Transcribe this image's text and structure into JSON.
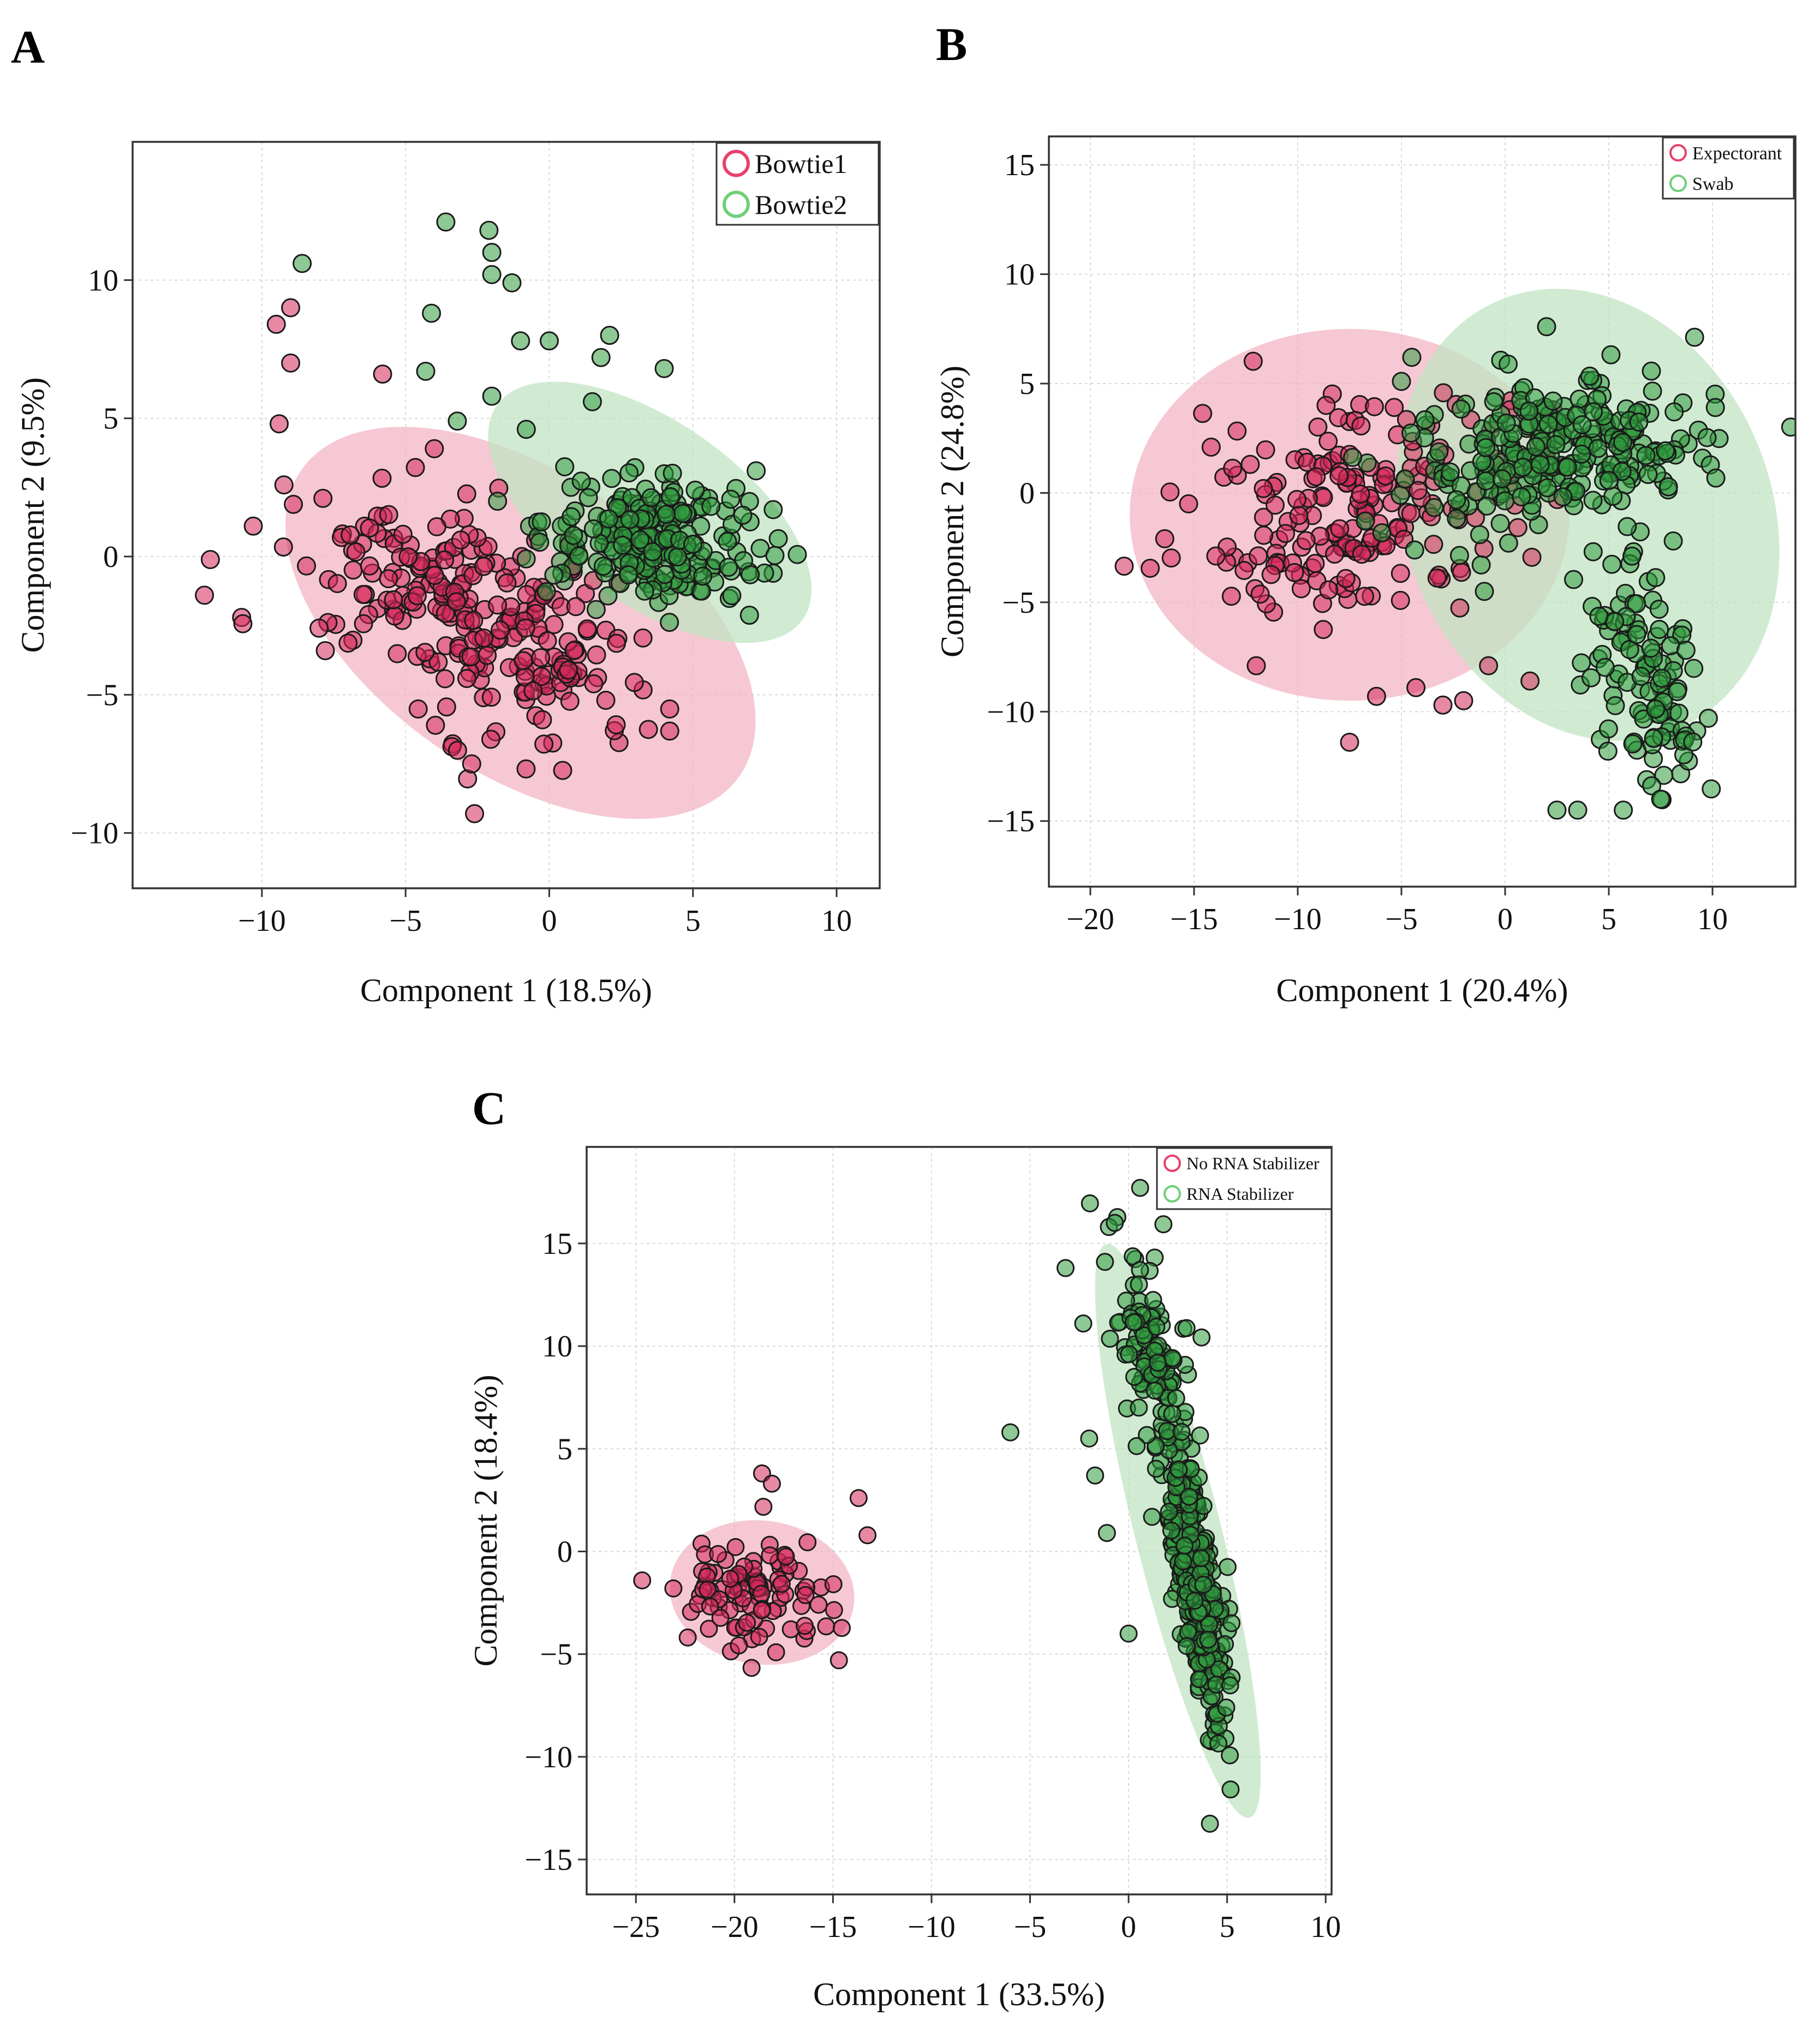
{
  "colors": {
    "red_fill": "#d6285a",
    "red_ellipse": "#f2b3c4",
    "red_legend": "#e8406b",
    "green_fill": "#2f9a3e",
    "green_ellipse": "#bfe3c1",
    "green_legend": "#6fcf78",
    "marker_edge": "#1a1a1a",
    "grid": "#d8d8d8",
    "frame": "#333333"
  },
  "chart_data": [
    {
      "id": "A",
      "type": "scatter",
      "panel_label": "A",
      "xlabel": "Component 1 (18.5%)",
      "ylabel": "Component 2 (9.5%)",
      "xlim": [
        -14.5,
        11.5
      ],
      "ylim": [
        -12,
        15
      ],
      "xticks": [
        -10,
        -5,
        0,
        5,
        10
      ],
      "yticks": [
        -10,
        -5,
        0,
        5,
        10
      ],
      "xtick_labels": [
        "−10",
        "−5",
        "0",
        "5",
        "10"
      ],
      "ytick_labels": [
        "−10",
        "−5",
        "0",
        "5",
        "10"
      ],
      "grid": true,
      "legend_position": "top-right",
      "series": [
        {
          "name": "Bowtie1",
          "color_key": "red",
          "ellipse": {
            "cx": -1.0,
            "cy": -2.4,
            "rx": 9.3,
            "ry": 5.4,
            "angle_deg": -35
          },
          "cluster": {
            "n": 260,
            "mx": -2.6,
            "my": -2.2,
            "s1": 3.4,
            "s2": 1.6,
            "angle_deg": -33
          },
          "outliers": [
            [
              -9.0,
              9.0
            ],
            [
              -9.5,
              8.4
            ],
            [
              -9.0,
              7.0
            ],
            [
              -9.4,
              4.8
            ],
            [
              -12.0,
              -1.4
            ],
            [
              -2.6,
              -9.3
            ],
            [
              -2.7,
              -7.5
            ],
            [
              -10.3,
              1.1
            ],
            [
              -5.8,
              6.6
            ],
            [
              -4.0,
              3.9
            ]
          ]
        },
        {
          "name": "Bowtie2",
          "color_key": "green",
          "ellipse": {
            "cx": 3.5,
            "cy": 1.6,
            "rx": 6.5,
            "ry": 3.3,
            "angle_deg": -35
          },
          "cluster": {
            "n": 220,
            "mx": 3.8,
            "my": 0.6,
            "s1": 1.9,
            "s2": 1.1,
            "angle_deg": -10
          },
          "outliers": [
            [
              -3.6,
              12.1
            ],
            [
              -2.1,
              11.8
            ],
            [
              -2.0,
              11.0
            ],
            [
              -2.0,
              10.2
            ],
            [
              -1.3,
              9.9
            ],
            [
              -8.6,
              10.6
            ],
            [
              -4.1,
              8.8
            ],
            [
              -4.3,
              6.7
            ],
            [
              -1.0,
              7.8
            ],
            [
              0.0,
              7.8
            ],
            [
              1.8,
              7.2
            ],
            [
              2.1,
              8.0
            ],
            [
              4.0,
              6.8
            ],
            [
              -2.0,
              5.8
            ],
            [
              -0.8,
              4.6
            ],
            [
              -1.8,
              2.0
            ],
            [
              7.2,
              3.1
            ],
            [
              -3.2,
              4.9
            ],
            [
              1.5,
              5.6
            ]
          ]
        }
      ]
    },
    {
      "id": "B",
      "type": "scatter",
      "panel_label": "B",
      "xlabel": "Component 1 (20.4%)",
      "ylabel": "Component 2 (24.8%)",
      "xlim": [
        -22,
        14
      ],
      "ylim": [
        -18,
        16.3
      ],
      "xticks": [
        -20,
        -15,
        -10,
        -5,
        0,
        5,
        10
      ],
      "yticks": [
        -15,
        -10,
        -5,
        0,
        5,
        10,
        15
      ],
      "xtick_labels": [
        "−20",
        "−15",
        "−10",
        "−5",
        "0",
        "5",
        "10"
      ],
      "ytick_labels": [
        "−15",
        "−10",
        "−5",
        "0",
        "5",
        "10",
        "15"
      ],
      "grid": true,
      "legend_position": "top-right",
      "series": [
        {
          "name": "Expectorant",
          "color_key": "red",
          "ellipse": {
            "cx": -7.5,
            "cy": -1.0,
            "rx": 10.6,
            "ry": 8.5,
            "angle_deg": 0
          },
          "cluster": {
            "n": 200,
            "mx": -7.0,
            "my": -0.6,
            "s1": 4.0,
            "s2": 2.3,
            "angle_deg": 8
          },
          "outliers": [
            [
              -7.5,
              -11.4
            ],
            [
              -3.0,
              -9.7
            ],
            [
              -2.0,
              -9.5
            ],
            [
              -12.0,
              -7.9
            ],
            [
              -6.2,
              -9.3
            ],
            [
              -4.3,
              -8.9
            ],
            [
              1.2,
              -8.6
            ],
            [
              -0.8,
              -7.9
            ]
          ]
        },
        {
          "name": "Swab",
          "color_key": "green",
          "ellipse": {
            "cx": 4.0,
            "cy": -1.0,
            "rx": 11.2,
            "ry": 8.4,
            "angle_deg": -68
          },
          "cluster": {
            "n": 260,
            "mx": 2.5,
            "my": 2.0,
            "s1": 3.6,
            "s2": 1.7,
            "angle_deg": 8
          },
          "cluster2": {
            "n": 110,
            "mx": 6.8,
            "my": -8.5,
            "s1": 2.8,
            "s2": 1.4,
            "angle_deg": -75
          },
          "outliers": [
            [
              2.0,
              7.6
            ],
            [
              -4.5,
              6.2
            ],
            [
              -5.0,
              5.1
            ],
            [
              3.5,
              -14.5
            ],
            [
              2.5,
              -14.5
            ],
            [
              5.7,
              -14.5
            ],
            [
              7.5,
              -14.0
            ],
            [
              -1.0,
              -4.5
            ],
            [
              9.8,
              -10.3
            ]
          ]
        }
      ]
    },
    {
      "id": "C",
      "type": "scatter",
      "panel_label": "C",
      "xlabel": "Component 1 (33.5%)",
      "ylabel": "Component 2 (18.4%)",
      "xlim": [
        -27.5,
        10.3
      ],
      "ylim": [
        -16.7,
        19.7
      ],
      "xticks": [
        -25,
        -20,
        -15,
        -10,
        -5,
        0,
        5,
        10
      ],
      "yticks": [
        -15,
        -10,
        -5,
        0,
        5,
        10,
        15
      ],
      "xtick_labels": [
        "−25",
        "−20",
        "−15",
        "−10",
        "−5",
        "0",
        "5",
        "10"
      ],
      "ytick_labels": [
        "−15",
        "−10",
        "−5",
        "0",
        "5",
        "10",
        "15"
      ],
      "grid": true,
      "legend_position": "top-right",
      "series": [
        {
          "name": "No RNA Stabilizer",
          "color_key": "red",
          "ellipse": {
            "cx": -18.6,
            "cy": -2.0,
            "rx": 4.7,
            "ry": 3.5,
            "angle_deg": -8
          },
          "cluster": {
            "n": 100,
            "mx": -18.8,
            "my": -2.0,
            "s1": 2.2,
            "s2": 1.4,
            "angle_deg": -5
          },
          "outliers": [
            [
              -18.6,
              3.8
            ],
            [
              -18.1,
              3.3
            ],
            [
              -13.7,
              2.6
            ],
            [
              -14.7,
              -5.3
            ],
            [
              -23.1,
              -1.8
            ]
          ]
        },
        {
          "name": "RNA Stabilizer",
          "color_key": "green",
          "ellipse": {
            "cx": 2.5,
            "cy": 1.0,
            "rx": 15.0,
            "ry": 2.1,
            "angle_deg": -76
          },
          "cluster": {
            "n": 330,
            "mx": 3.4,
            "my": -1.6,
            "s1": 3.6,
            "s2": 0.55,
            "angle_deg": -80
          },
          "cluster2": {
            "n": 110,
            "mx": 1.3,
            "my": 9.5,
            "s1": 2.8,
            "s2": 0.9,
            "angle_deg": -80
          },
          "outliers": [
            [
              -6.0,
              5.8
            ],
            [
              -3.2,
              13.8
            ],
            [
              -2.3,
              11.1
            ],
            [
              -1.0,
              15.8
            ],
            [
              -0.7,
              16.0
            ],
            [
              -1.2,
              14.1
            ],
            [
              -1.1,
              0.9
            ],
            [
              -1.7,
              3.7
            ],
            [
              -2.0,
              5.5
            ],
            [
              0.0,
              -4.0
            ]
          ]
        }
      ]
    }
  ]
}
